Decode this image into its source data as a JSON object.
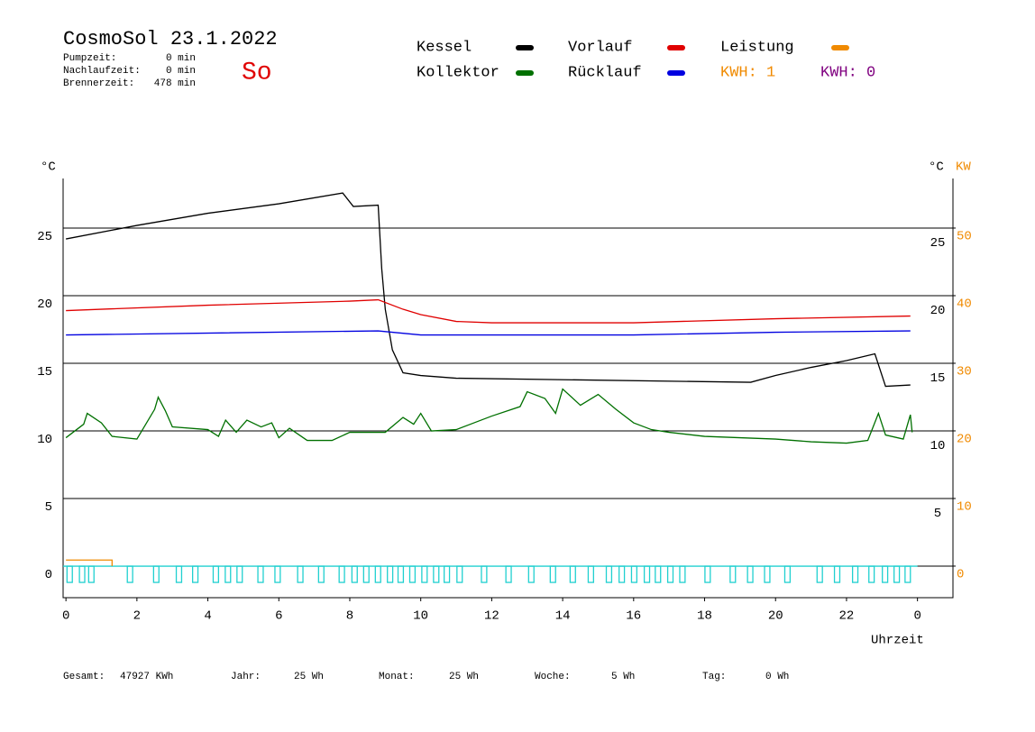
{
  "header": {
    "title": "CosmoSol 23.1.2022",
    "stats": [
      {
        "label": "Pumpzeit:",
        "value": "0 min"
      },
      {
        "label": "Nachlaufzeit:",
        "value": "0 min"
      },
      {
        "label": "Brennerzeit:",
        "value": "478 min"
      }
    ],
    "weekday": "So"
  },
  "legend_extra": [
    {
      "text": "KWH: 1",
      "color": "#f08a00"
    },
    {
      "text": "KWH: 0",
      "color": "#800080"
    }
  ],
  "footer": [
    {
      "label": "Gesamt:",
      "value": "47927 KWh"
    },
    {
      "label": "Jahr:",
      "value": "25 Wh"
    },
    {
      "label": "Monat:",
      "value": "25 Wh"
    },
    {
      "label": "Woche:",
      "value": "5 Wh"
    },
    {
      "label": "Tag:",
      "value": "0 Wh"
    }
  ],
  "chart_data": {
    "type": "line",
    "ylabel": "°C",
    "ylabel_right": "°C",
    "y2label": "KW",
    "xlabel": "Uhrzeit",
    "xlim": [
      -0.08,
      25.0
    ],
    "xticks": [
      0,
      2,
      4,
      6,
      8,
      10,
      12,
      14,
      16,
      18,
      20,
      22,
      {
        "value": 24,
        "label": "0"
      }
    ],
    "ylim": [
      -2.33,
      28.67
    ],
    "yticks": [
      0,
      5,
      10,
      15,
      20,
      25
    ],
    "y2lim": [
      -4.67,
      57.33
    ],
    "y2ticks": [
      0,
      10,
      20,
      30,
      40,
      50
    ],
    "y2color": "#f08a00",
    "grid": true,
    "series": [
      {
        "name": "Kessel",
        "color": "#000000",
        "x": [
          0,
          2,
          4,
          6,
          7.8,
          8.1,
          8.8,
          8.9,
          9.0,
          9.2,
          9.5,
          10,
          11,
          19.3,
          20,
          21,
          22,
          22.8,
          23.1,
          23.8
        ],
        "values": [
          24.2,
          25.2,
          26.1,
          26.8,
          27.6,
          26.6,
          26.7,
          22,
          19,
          16,
          14.3,
          14.1,
          13.9,
          13.6,
          14.1,
          14.7,
          15.2,
          15.7,
          13.3,
          13.4
        ]
      },
      {
        "name": "Vorlauf",
        "color": "#e00000",
        "x": [
          0,
          4,
          8,
          8.8,
          9.5,
          10,
          11,
          12,
          16,
          20,
          23.8
        ],
        "values": [
          18.9,
          19.3,
          19.6,
          19.7,
          19.0,
          18.6,
          18.1,
          18.0,
          18.0,
          18.3,
          18.5
        ]
      },
      {
        "name": "Leistung",
        "color": "#f08a00",
        "axis": "y2",
        "x": [
          0,
          1.3,
          1.3
        ],
        "values": [
          0.9,
          0.9,
          0
        ]
      },
      {
        "name": "Kollektor",
        "color": "#007000",
        "x": [
          0,
          0.5,
          0.6,
          1,
          1.3,
          2,
          2.5,
          2.6,
          2.8,
          3,
          4,
          4.3,
          4.5,
          4.8,
          5.1,
          5.5,
          5.8,
          6,
          6.3,
          6.8,
          7.5,
          8,
          9,
          9.5,
          9.8,
          10,
          10.3,
          11,
          11.5,
          12,
          12.8,
          13,
          13.5,
          13.8,
          14,
          14.5,
          15,
          15.5,
          16,
          16.5,
          17,
          18,
          19,
          20,
          21,
          22,
          22.6,
          22.9,
          23.1,
          23.6,
          23.8,
          23.85
        ],
        "values": [
          9.5,
          10.5,
          11.3,
          10.6,
          9.6,
          9.4,
          11.6,
          12.5,
          11.5,
          10.3,
          10.1,
          9.6,
          10.8,
          9.9,
          10.8,
          10.3,
          10.6,
          9.5,
          10.2,
          9.3,
          9.3,
          9.9,
          9.9,
          11.0,
          10.5,
          11.3,
          10.0,
          10.1,
          10.6,
          11.1,
          11.8,
          12.9,
          12.4,
          11.3,
          13.1,
          11.9,
          12.7,
          11.6,
          10.6,
          10.1,
          9.9,
          9.6,
          9.5,
          9.4,
          9.2,
          9.1,
          9.3,
          11.3,
          9.7,
          9.4,
          11.2,
          9.9
        ]
      },
      {
        "name": "Rücklauf",
        "color": "#0000e0",
        "x": [
          0,
          8.8,
          10,
          12,
          16,
          20,
          23.8
        ],
        "values": [
          17.1,
          17.4,
          17.1,
          17.1,
          17.1,
          17.3,
          17.4
        ]
      }
    ],
    "pulses": {
      "color": "#20d0d0",
      "depth": -1.2,
      "starts": [
        0.03,
        0.38,
        0.64,
        1.73,
        2.47,
        3.11,
        3.57,
        4.15,
        4.49,
        4.82,
        5.41,
        5.89,
        6.53,
        7.12,
        7.7,
        8.06,
        8.39,
        8.72,
        9.06,
        9.36,
        9.69,
        10.03,
        10.36,
        10.66,
        11.02,
        11.71,
        12.4,
        13.04,
        13.65,
        14.21,
        14.72,
        15.23,
        15.59,
        15.94,
        16.3,
        16.61,
        16.96,
        17.3,
        18.01,
        18.72,
        19.21,
        19.69,
        20.26,
        21.17,
        21.66,
        22.17,
        22.63,
        23.01,
        23.34,
        23.65
      ],
      "ends": [
        0.18,
        0.53,
        0.79,
        1.88,
        2.62,
        3.26,
        3.72,
        4.3,
        4.64,
        4.97,
        5.56,
        6.04,
        6.68,
        7.27,
        7.85,
        8.21,
        8.54,
        8.87,
        9.21,
        9.51,
        9.84,
        10.18,
        10.51,
        10.81,
        11.17,
        11.86,
        12.55,
        13.19,
        13.8,
        14.36,
        14.87,
        15.38,
        15.74,
        16.09,
        16.45,
        16.76,
        17.11,
        17.45,
        18.16,
        18.87,
        19.36,
        19.84,
        20.41,
        21.32,
        21.81,
        22.32,
        22.78,
        23.16,
        23.49,
        23.8
      ]
    }
  }
}
